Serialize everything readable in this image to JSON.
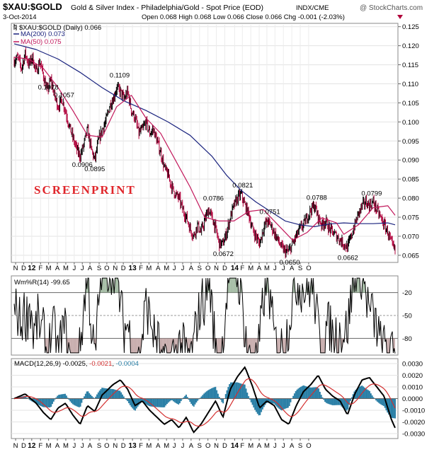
{
  "header": {
    "symbol": "$XAU:$GOLD",
    "description": "Gold & Silver Index - Philadelphia/Gold - Spot Price (EOD)",
    "exchange": "INDX/CME",
    "date": "3-Oct-2014",
    "open_label": "Open",
    "open": "0.068",
    "high_label": "High",
    "high": "0.068",
    "low_label": "Low",
    "low": "0.066",
    "close_label": "Close",
    "close": "0.066",
    "chg_label": "Chg",
    "chg": "-0.001 (-2.03%)",
    "brand": "@ StockCharts.com",
    "colors": {
      "down_marker": "#b0003a"
    }
  },
  "watermark": "SCREENPRINT",
  "chart_data": [
    {
      "type": "line",
      "name": "price",
      "legend": [
        {
          "label": "$XAU:$GOLD (Daily) 0.066",
          "color": "#000000",
          "marker": "bars"
        },
        {
          "label": "MA(200) 0.073",
          "color": "#1a237e"
        },
        {
          "label": "MA(50) 0.075",
          "color": "#c2185b"
        }
      ],
      "ylim": [
        0.0635,
        0.1255
      ],
      "yticks": [
        "0.065",
        "0.070",
        "0.075",
        "0.080",
        "0.085",
        "0.090",
        "0.095",
        "0.100",
        "0.105",
        "0.110",
        "0.115",
        "0.120",
        "0.125"
      ],
      "annotations": [
        {
          "t": 9.3,
          "value": 0.1078,
          "label": "0.1078"
        },
        {
          "t": 13.6,
          "value": 0.1057,
          "label": "0.1057"
        },
        {
          "t": 18.6,
          "value": 0.0906,
          "label": "0.0906"
        },
        {
          "t": 22.0,
          "value": 0.0895,
          "label": "0.0895"
        },
        {
          "t": 28.8,
          "value": 0.1109,
          "label": "0.1109"
        },
        {
          "t": 54.4,
          "value": 0.0786,
          "label": "0.0786"
        },
        {
          "t": 62.4,
          "value": 0.0821,
          "label": "0.0821"
        },
        {
          "t": 57.1,
          "value": 0.0672,
          "label": "0.0672"
        },
        {
          "t": 69.8,
          "value": 0.0751,
          "label": "0.0751"
        },
        {
          "t": 75.2,
          "value": 0.065,
          "label": "0.0650"
        },
        {
          "t": 82.6,
          "value": 0.0788,
          "label": "0.0788"
        },
        {
          "t": 91.1,
          "value": 0.0662,
          "label": "0.0662"
        },
        {
          "t": 97.6,
          "value": 0.0799,
          "label": "0.0799"
        }
      ],
      "close_path": [
        [
          0,
          0.116
        ],
        [
          1,
          0.117
        ],
        [
          2,
          0.114
        ],
        [
          3,
          0.118
        ],
        [
          4,
          0.115
        ],
        [
          5,
          0.117
        ],
        [
          6,
          0.113
        ],
        [
          7,
          0.116
        ],
        [
          8,
          0.112
        ],
        [
          9,
          0.108
        ],
        [
          10,
          0.111
        ],
        [
          11,
          0.107
        ],
        [
          12,
          0.104
        ],
        [
          13,
          0.106
        ],
        [
          14,
          0.103
        ],
        [
          15,
          0.099
        ],
        [
          16,
          0.096
        ],
        [
          17,
          0.093
        ],
        [
          18,
          0.091
        ],
        [
          19,
          0.094
        ],
        [
          20,
          0.098
        ],
        [
          21,
          0.093
        ],
        [
          22,
          0.09
        ],
        [
          23,
          0.095
        ],
        [
          24,
          0.098
        ],
        [
          25,
          0.1
        ],
        [
          26,
          0.104
        ],
        [
          27,
          0.106
        ],
        [
          28,
          0.109
        ],
        [
          29,
          0.108
        ],
        [
          30,
          0.106
        ],
        [
          31,
          0.108
        ],
        [
          32,
          0.103
        ],
        [
          33,
          0.101
        ],
        [
          34,
          0.097
        ],
        [
          35,
          0.098
        ],
        [
          36,
          0.1
        ],
        [
          37,
          0.097
        ],
        [
          38,
          0.098
        ],
        [
          39,
          0.095
        ],
        [
          40,
          0.092
        ],
        [
          41,
          0.088
        ],
        [
          42,
          0.086
        ],
        [
          43,
          0.083
        ],
        [
          44,
          0.081
        ],
        [
          45,
          0.08
        ],
        [
          46,
          0.077
        ],
        [
          47,
          0.075
        ],
        [
          48,
          0.072
        ],
        [
          49,
          0.07
        ],
        [
          50,
          0.073
        ],
        [
          51,
          0.071
        ],
        [
          52,
          0.074
        ],
        [
          53,
          0.077
        ],
        [
          54,
          0.075
        ],
        [
          55,
          0.072
        ],
        [
          56,
          0.068
        ],
        [
          57,
          0.068
        ],
        [
          58,
          0.071
        ],
        [
          59,
          0.075
        ],
        [
          60,
          0.078
        ],
        [
          61,
          0.08
        ],
        [
          62,
          0.081
        ],
        [
          63,
          0.078
        ],
        [
          64,
          0.076
        ],
        [
          65,
          0.072
        ],
        [
          66,
          0.07
        ],
        [
          67,
          0.068
        ],
        [
          68,
          0.072
        ],
        [
          69,
          0.074
        ],
        [
          70,
          0.073
        ],
        [
          71,
          0.071
        ],
        [
          72,
          0.069
        ],
        [
          73,
          0.067
        ],
        [
          74,
          0.066
        ],
        [
          75,
          0.066
        ],
        [
          76,
          0.068
        ],
        [
          77,
          0.07
        ],
        [
          78,
          0.072
        ],
        [
          79,
          0.073
        ],
        [
          80,
          0.075
        ],
        [
          81,
          0.077
        ],
        [
          82,
          0.078
        ],
        [
          83,
          0.075
        ],
        [
          84,
          0.073
        ],
        [
          85,
          0.074
        ],
        [
          86,
          0.072
        ],
        [
          87,
          0.071
        ],
        [
          88,
          0.07
        ],
        [
          89,
          0.069
        ],
        [
          90,
          0.068
        ],
        [
          91,
          0.067
        ],
        [
          92,
          0.07
        ],
        [
          93,
          0.073
        ],
        [
          94,
          0.076
        ],
        [
          95,
          0.078
        ],
        [
          96,
          0.079
        ],
        [
          97,
          0.078
        ],
        [
          98,
          0.079
        ],
        [
          99,
          0.077
        ],
        [
          100,
          0.075
        ],
        [
          101,
          0.073
        ],
        [
          102,
          0.071
        ],
        [
          103,
          0.068
        ],
        [
          104,
          0.066
        ]
      ],
      "ma200_path": [
        [
          0,
          0.1205
        ],
        [
          6,
          0.119
        ],
        [
          12,
          0.1165
        ],
        [
          18,
          0.113
        ],
        [
          24,
          0.109
        ],
        [
          30,
          0.1055
        ],
        [
          36,
          0.103
        ],
        [
          42,
          0.1
        ],
        [
          48,
          0.0965
        ],
        [
          54,
          0.091
        ],
        [
          58,
          0.086
        ],
        [
          62,
          0.082
        ],
        [
          66,
          0.079
        ],
        [
          70,
          0.0765
        ],
        [
          74,
          0.074
        ],
        [
          78,
          0.073
        ],
        [
          82,
          0.0725
        ],
        [
          86,
          0.0732
        ],
        [
          90,
          0.0735
        ],
        [
          94,
          0.0733
        ],
        [
          98,
          0.0733
        ],
        [
          102,
          0.0735
        ],
        [
          104,
          0.073
        ]
      ],
      "ma50_path": [
        [
          0,
          0.117
        ],
        [
          4,
          0.1165
        ],
        [
          8,
          0.114
        ],
        [
          12,
          0.109
        ],
        [
          16,
          0.103
        ],
        [
          20,
          0.0965
        ],
        [
          24,
          0.096
        ],
        [
          28,
          0.104
        ],
        [
          32,
          0.107
        ],
        [
          36,
          0.101
        ],
        [
          40,
          0.097
        ],
        [
          44,
          0.09
        ],
        [
          48,
          0.083
        ],
        [
          52,
          0.075
        ],
        [
          56,
          0.074
        ],
        [
          60,
          0.074
        ],
        [
          64,
          0.0765
        ],
        [
          68,
          0.077
        ],
        [
          72,
          0.073
        ],
        [
          76,
          0.069
        ],
        [
          80,
          0.071
        ],
        [
          84,
          0.0748
        ],
        [
          88,
          0.0735
        ],
        [
          90,
          0.0705
        ],
        [
          94,
          0.073
        ],
        [
          98,
          0.0775
        ],
        [
          102,
          0.078
        ],
        [
          104,
          0.0755
        ]
      ]
    },
    {
      "type": "line",
      "name": "williams",
      "legend": [
        {
          "label": "Wm%R(14) -99.65",
          "color": "#000000"
        }
      ],
      "ylim": [
        -100,
        0
      ],
      "yticks": [
        "-20",
        "-50",
        "-80"
      ],
      "levels": [
        -20,
        -80
      ],
      "midline": -50
    },
    {
      "type": "line",
      "name": "macd",
      "legend": [
        {
          "label": "MACD(12,26,9)",
          "value": "-0.0025",
          "color": "#000000"
        },
        {
          "label": "",
          "value": "-0.0021",
          "color": "#d32f2f"
        },
        {
          "label": "",
          "value": "-0.0004",
          "color": "#2a7fa6"
        }
      ],
      "ylim": [
        -0.0033,
        0.0033
      ],
      "yticks": [
        "0.0030",
        "0.0020",
        "0.0010",
        "0.0000",
        "-0.0010",
        "-0.0020",
        "-0.0030"
      ],
      "macd_path": [
        [
          0,
          0.0
        ],
        [
          3,
          0.0004
        ],
        [
          6,
          -0.0004
        ],
        [
          8,
          -0.0012
        ],
        [
          10,
          -0.0018
        ],
        [
          12,
          -0.0008
        ],
        [
          14,
          -0.0004
        ],
        [
          16,
          -0.0014
        ],
        [
          18,
          -0.0022
        ],
        [
          20,
          -0.0006
        ],
        [
          22,
          -0.0011
        ],
        [
          24,
          0.0003
        ],
        [
          27,
          0.0012
        ],
        [
          29,
          0.0016
        ],
        [
          31,
          0.0008
        ],
        [
          33,
          -0.0006
        ],
        [
          35,
          -0.0002
        ],
        [
          37,
          -0.001
        ],
        [
          39,
          -0.0016
        ],
        [
          41,
          -0.0022
        ],
        [
          43,
          -0.0018
        ],
        [
          45,
          -0.0025
        ],
        [
          47,
          -0.0016
        ],
        [
          49,
          -0.0029
        ],
        [
          51,
          -0.0022
        ],
        [
          53,
          -0.0012
        ],
        [
          55,
          -0.0002
        ],
        [
          57,
          -0.0016
        ],
        [
          59,
          0.0008
        ],
        [
          61,
          0.0019
        ],
        [
          63,
          0.0027
        ],
        [
          65,
          0.0011
        ],
        [
          67,
          -0.0008
        ],
        [
          69,
          -0.0002
        ],
        [
          71,
          -0.0006
        ],
        [
          73,
          -0.0018
        ],
        [
          75,
          -0.0022
        ],
        [
          77,
          -0.0006
        ],
        [
          79,
          0.0006
        ],
        [
          81,
          0.0012
        ],
        [
          83,
          0.002
        ],
        [
          85,
          0.0008
        ],
        [
          87,
          0.0002
        ],
        [
          89,
          -0.0002
        ],
        [
          91,
          -0.0014
        ],
        [
          93,
          0.0004
        ],
        [
          95,
          0.0016
        ],
        [
          97,
          0.0018
        ],
        [
          99,
          0.001
        ],
        [
          101,
          0.0002
        ],
        [
          103,
          -0.0018
        ],
        [
          104,
          -0.0025
        ]
      ]
    }
  ],
  "x_axis": {
    "t_max": 104,
    "labels": [
      {
        "t": 0.4,
        "label": "N"
      },
      {
        "t": 2.6,
        "label": "D"
      },
      {
        "t": 4.8,
        "label": "12",
        "year": true
      },
      {
        "t": 7.2,
        "label": "F"
      },
      {
        "t": 9.4,
        "label": "M"
      },
      {
        "t": 11.8,
        "label": "A"
      },
      {
        "t": 14.1,
        "label": "M"
      },
      {
        "t": 16.4,
        "label": "J"
      },
      {
        "t": 18.6,
        "label": "J"
      },
      {
        "t": 20.7,
        "label": "A"
      },
      {
        "t": 23.2,
        "label": "S"
      },
      {
        "t": 25.3,
        "label": "O"
      },
      {
        "t": 27.6,
        "label": "N"
      },
      {
        "t": 29.8,
        "label": "D"
      },
      {
        "t": 32.3,
        "label": "13",
        "year": true
      },
      {
        "t": 34.6,
        "label": "F"
      },
      {
        "t": 36.8,
        "label": "M"
      },
      {
        "t": 39.3,
        "label": "A"
      },
      {
        "t": 41.6,
        "label": "M"
      },
      {
        "t": 43.7,
        "label": "J"
      },
      {
        "t": 46.0,
        "label": "J"
      },
      {
        "t": 48.3,
        "label": "A"
      },
      {
        "t": 50.6,
        "label": "S"
      },
      {
        "t": 52.9,
        "label": "O"
      },
      {
        "t": 55.2,
        "label": "N"
      },
      {
        "t": 57.5,
        "label": "D"
      },
      {
        "t": 60.2,
        "label": "14",
        "year": true
      },
      {
        "t": 62.3,
        "label": "F"
      },
      {
        "t": 64.6,
        "label": "M"
      },
      {
        "t": 66.9,
        "label": "A"
      },
      {
        "t": 69.0,
        "label": "M"
      },
      {
        "t": 71.2,
        "label": "J"
      },
      {
        "t": 73.5,
        "label": "J"
      },
      {
        "t": 75.8,
        "label": "A"
      },
      {
        "t": 78.1,
        "label": "S"
      },
      {
        "t": 80.4,
        "label": "O"
      }
    ]
  }
}
